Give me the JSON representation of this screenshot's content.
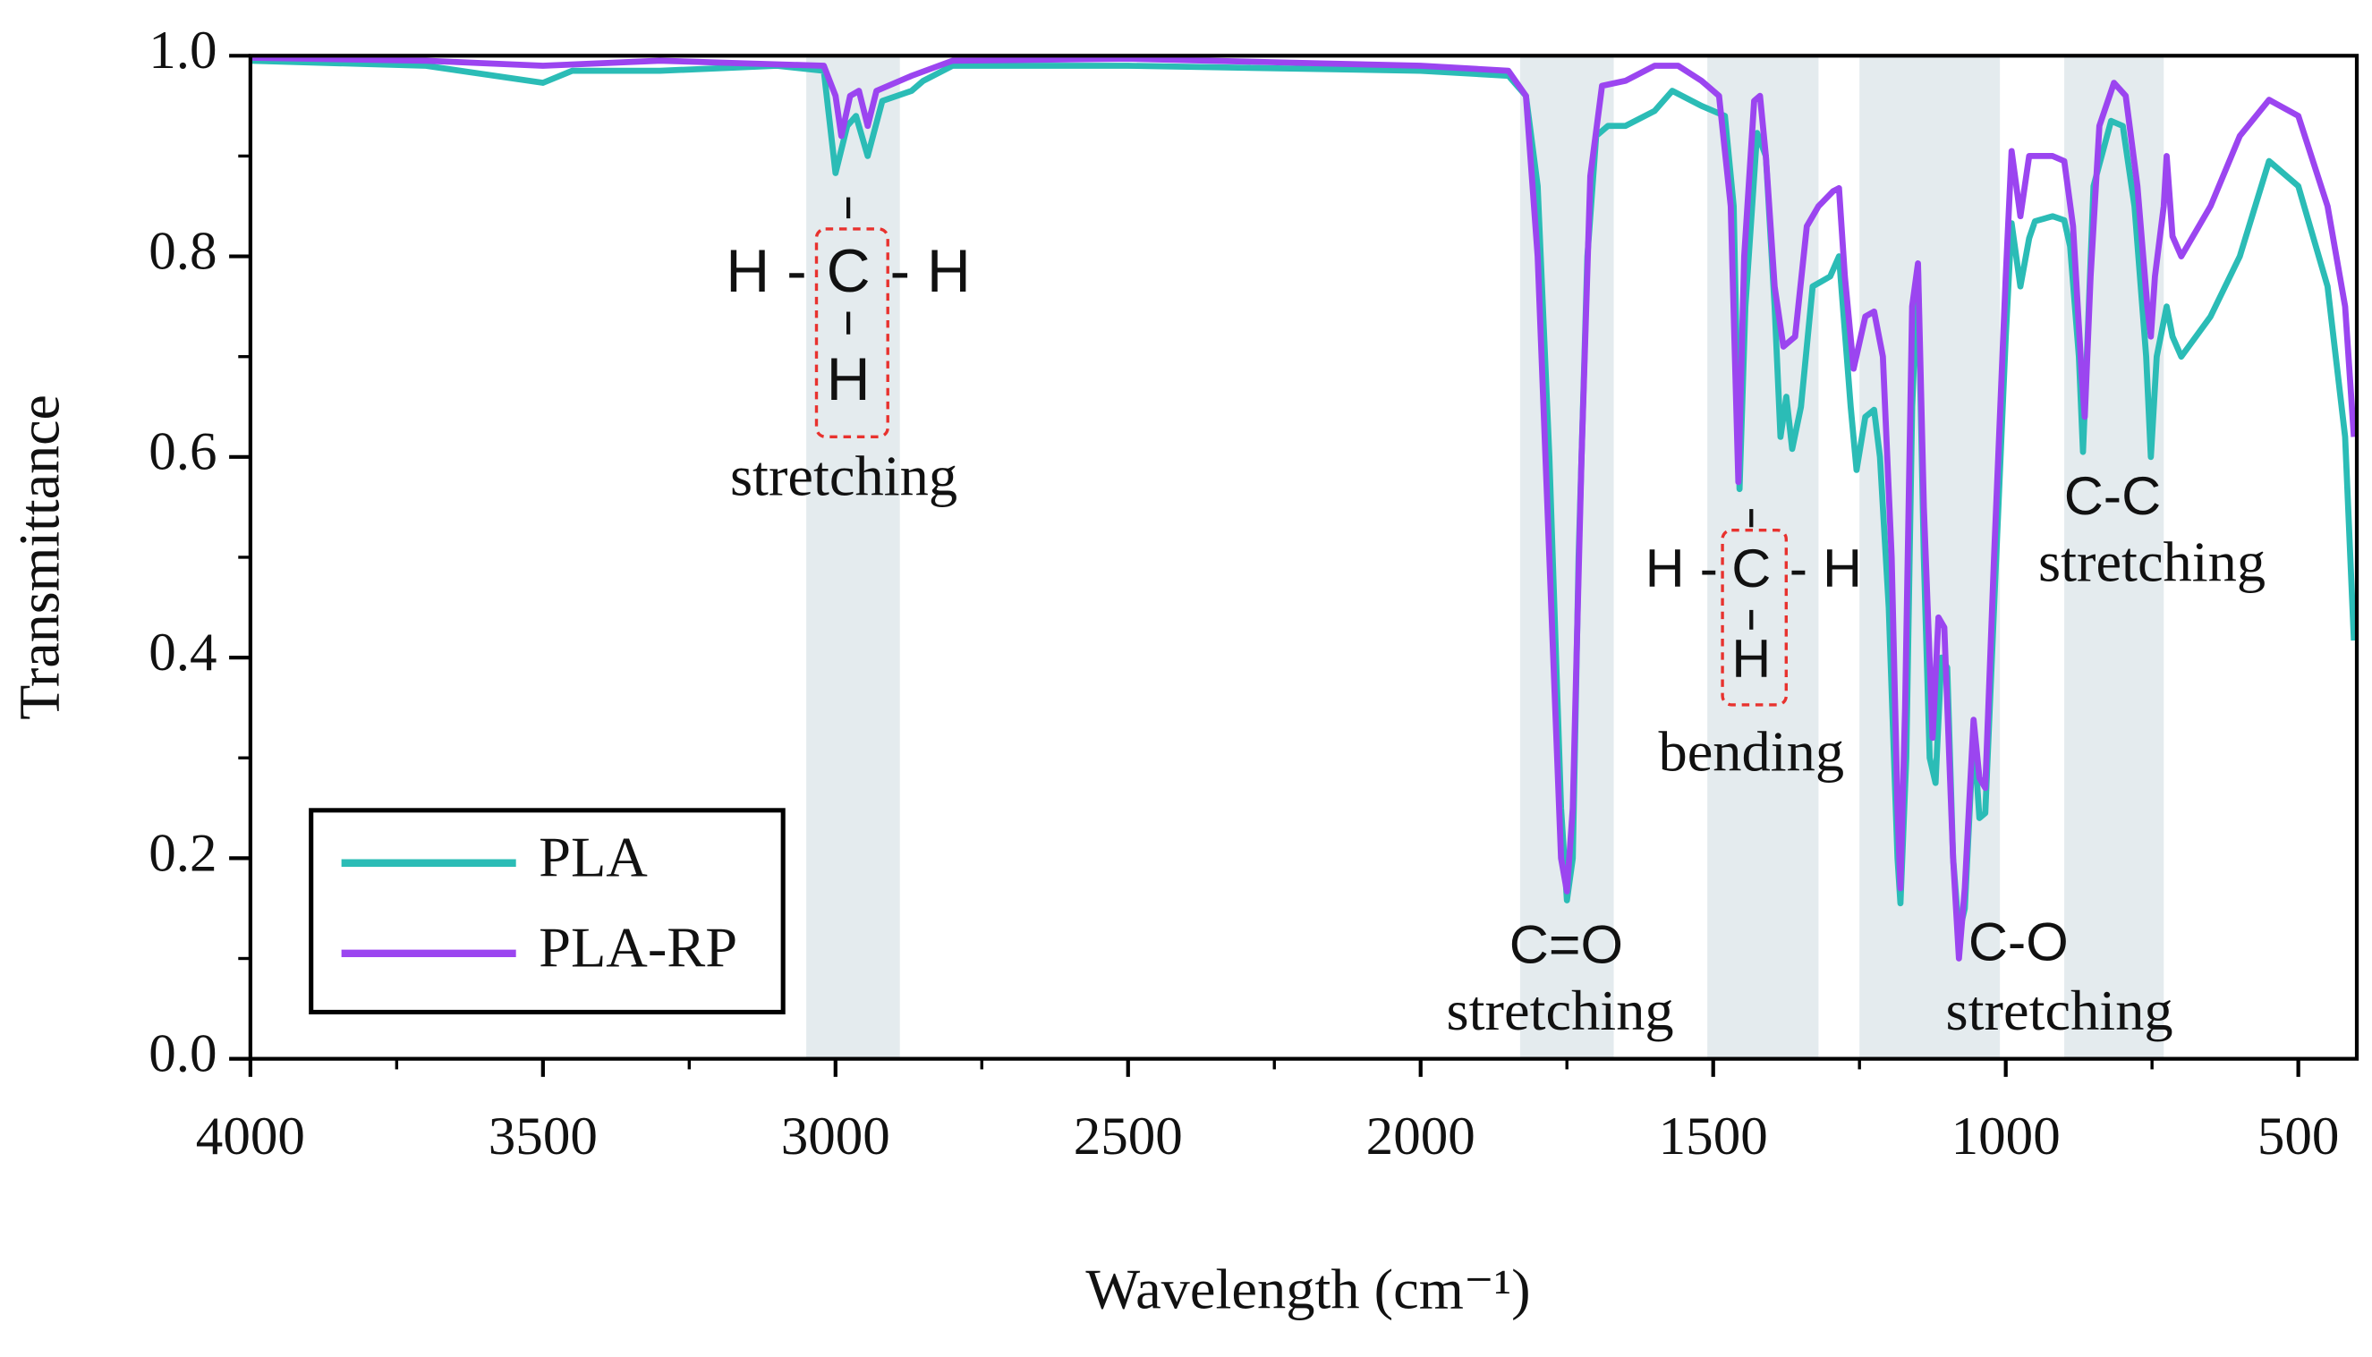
{
  "chart_data": {
    "type": "line",
    "xlabel": "Wavelength (cm⁻¹)",
    "ylabel": "Transmittance",
    "xlim": [
      4000,
      400
    ],
    "ylim": [
      0,
      1
    ],
    "xticks": [
      4000,
      3500,
      3000,
      2500,
      2000,
      1500,
      1000,
      500
    ],
    "xminorticks": [
      3750,
      3250,
      2750,
      2250,
      1750,
      1250,
      750
    ],
    "yticks": [
      {
        "value": 0,
        "label": "0.0"
      },
      0.2,
      0.4,
      0.6,
      0.8,
      {
        "value": 1,
        "label": "1.0"
      }
    ],
    "yminorticks": [
      0.1,
      0.3,
      0.5,
      0.7,
      0.9
    ],
    "legend": "lower left",
    "shaded_regions": [
      [
        3050,
        2890
      ],
      [
        1830,
        1670
      ],
      [
        1510,
        1320
      ],
      [
        1250,
        1010
      ],
      [
        900,
        730
      ]
    ],
    "shade_color": "#e4ebee",
    "annotations": [
      {
        "formula": [
          "H -",
          "C",
          "- H",
          "H"
        ],
        "text": "stretching"
      },
      {
        "formula": [
          "H -",
          "C",
          "- H",
          "H"
        ],
        "text": "bending"
      },
      {
        "formula": [
          "C=O"
        ],
        "text": "stretching"
      },
      {
        "formula": [
          "C-O"
        ],
        "text": "stretching"
      },
      {
        "formula": [
          "C-C"
        ],
        "text": "stretching"
      }
    ],
    "series": [
      {
        "name": "PLA",
        "color": "#2bbcb6",
        "x": [
          4000,
          3700,
          3500,
          3450,
          3300,
          3100,
          3020,
          3000,
          2980,
          2965,
          2945,
          2920,
          2870,
          2850,
          2800,
          2500,
          2000,
          1850,
          1820,
          1800,
          1780,
          1760,
          1750,
          1740,
          1730,
          1715,
          1700,
          1680,
          1650,
          1600,
          1570,
          1520,
          1480,
          1465,
          1455,
          1445,
          1425,
          1410,
          1395,
          1385,
          1375,
          1365,
          1350,
          1330,
          1300,
          1285,
          1265,
          1255,
          1240,
          1225,
          1215,
          1200,
          1185,
          1180,
          1170,
          1160,
          1150,
          1140,
          1130,
          1120,
          1110,
          1100,
          1090,
          1080,
          1070,
          1055,
          1045,
          1035,
          1020,
          1000,
          990,
          975,
          960,
          950,
          920,
          900,
          890,
          875,
          868,
          860,
          850,
          820,
          800,
          780,
          760,
          752,
          742,
          725,
          715,
          700,
          650,
          600,
          550,
          500,
          450,
          420,
          405
        ],
        "values": [
          0.995,
          0.99,
          0.973,
          0.985,
          0.985,
          0.99,
          0.985,
          0.883,
          0.93,
          0.94,
          0.9,
          0.955,
          0.965,
          0.975,
          0.99,
          0.99,
          0.985,
          0.98,
          0.96,
          0.87,
          0.6,
          0.25,
          0.158,
          0.2,
          0.5,
          0.8,
          0.92,
          0.93,
          0.93,
          0.945,
          0.965,
          0.95,
          0.94,
          0.85,
          0.568,
          0.75,
          0.923,
          0.9,
          0.75,
          0.62,
          0.66,
          0.608,
          0.65,
          0.77,
          0.78,
          0.8,
          0.65,
          0.587,
          0.64,
          0.647,
          0.6,
          0.45,
          0.2,
          0.155,
          0.3,
          0.65,
          0.788,
          0.5,
          0.3,
          0.275,
          0.4,
          0.39,
          0.2,
          0.125,
          0.15,
          0.326,
          0.24,
          0.245,
          0.45,
          0.72,
          0.833,
          0.77,
          0.818,
          0.835,
          0.84,
          0.836,
          0.81,
          0.7,
          0.605,
          0.72,
          0.87,
          0.935,
          0.93,
          0.85,
          0.7,
          0.6,
          0.7,
          0.75,
          0.72,
          0.7,
          0.74,
          0.8,
          0.895,
          0.87,
          0.77,
          0.62,
          0.417
        ]
      },
      {
        "name": "PLA-RP",
        "color": "#9b45f0",
        "x": [
          4000,
          3700,
          3500,
          3300,
          3020,
          3000,
          2990,
          2975,
          2960,
          2945,
          2930,
          2870,
          2800,
          2500,
          2000,
          1850,
          1820,
          1800,
          1780,
          1760,
          1750,
          1740,
          1725,
          1710,
          1690,
          1650,
          1600,
          1560,
          1520,
          1490,
          1470,
          1457,
          1447,
          1430,
          1420,
          1410,
          1395,
          1380,
          1360,
          1340,
          1320,
          1295,
          1285,
          1275,
          1260,
          1240,
          1225,
          1210,
          1195,
          1185,
          1180,
          1172,
          1160,
          1150,
          1140,
          1125,
          1115,
          1105,
          1090,
          1080,
          1070,
          1055,
          1045,
          1035,
          1020,
          1000,
          990,
          975,
          960,
          920,
          900,
          885,
          870,
          865,
          855,
          840,
          815,
          795,
          775,
          758,
          752,
          745,
          730,
          725,
          715,
          700,
          650,
          600,
          550,
          500,
          450,
          420,
          405
        ],
        "values": [
          0.998,
          0.995,
          0.99,
          0.995,
          0.99,
          0.96,
          0.92,
          0.96,
          0.965,
          0.93,
          0.965,
          0.98,
          0.995,
          0.997,
          0.99,
          0.985,
          0.96,
          0.8,
          0.5,
          0.2,
          0.167,
          0.25,
          0.6,
          0.88,
          0.97,
          0.975,
          0.99,
          0.99,
          0.975,
          0.96,
          0.85,
          0.575,
          0.8,
          0.955,
          0.96,
          0.9,
          0.77,
          0.71,
          0.72,
          0.83,
          0.85,
          0.865,
          0.868,
          0.78,
          0.688,
          0.74,
          0.745,
          0.7,
          0.5,
          0.25,
          0.17,
          0.35,
          0.75,
          0.793,
          0.55,
          0.32,
          0.44,
          0.43,
          0.2,
          0.1,
          0.17,
          0.338,
          0.28,
          0.27,
          0.5,
          0.78,
          0.905,
          0.84,
          0.9,
          0.9,
          0.895,
          0.83,
          0.68,
          0.64,
          0.78,
          0.93,
          0.973,
          0.96,
          0.87,
          0.75,
          0.72,
          0.78,
          0.85,
          0.9,
          0.82,
          0.8,
          0.85,
          0.92,
          0.956,
          0.94,
          0.85,
          0.75,
          0.62
        ]
      }
    ]
  }
}
